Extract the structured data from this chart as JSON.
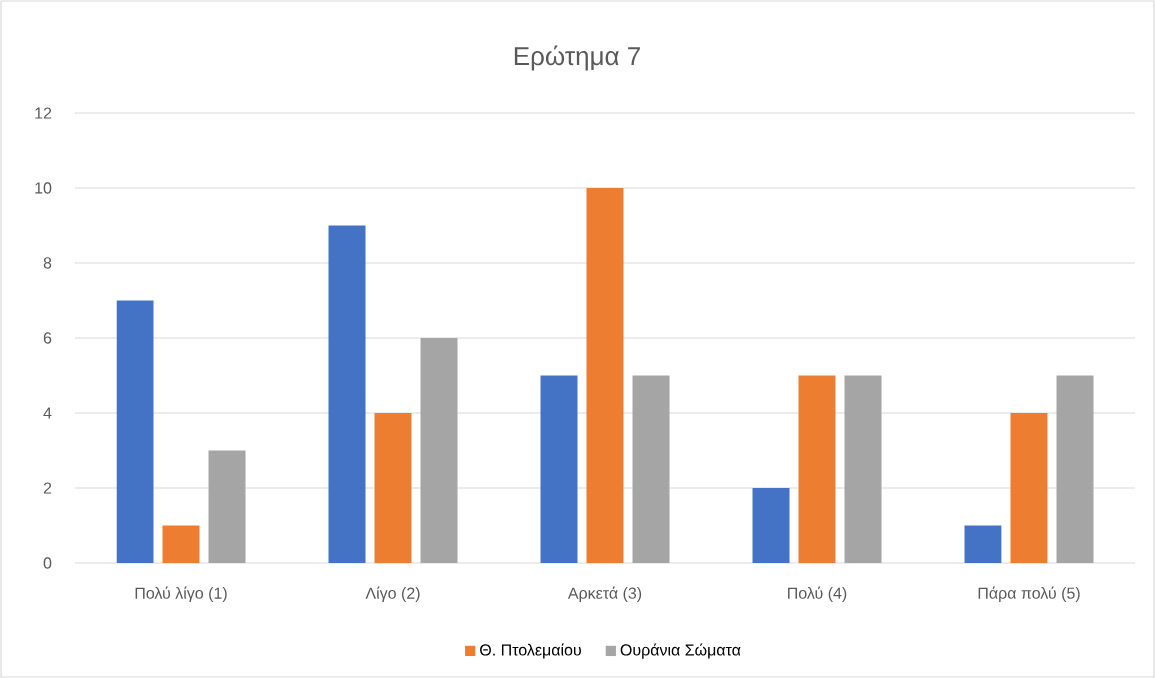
{
  "chart_data": {
    "type": "bar",
    "title": "Ερώτημα 7",
    "categories": [
      "Πολύ λίγο (1)",
      "Λίγο (2)",
      "Αρκετά (3)",
      "Πολύ (4)",
      "Πάρα πολύ (5)"
    ],
    "series": [
      {
        "color": "#4472c4",
        "values": [
          7,
          9,
          5,
          2,
          1
        ]
      },
      {
        "name": "Θ. Πτολεμαίου",
        "color": "#ed7d31",
        "values": [
          1,
          4,
          10,
          5,
          4
        ]
      },
      {
        "name": "Ουράνια Σώματα",
        "color": "#a5a5a5",
        "values": [
          3,
          6,
          5,
          5,
          5
        ]
      }
    ],
    "ylim": [
      0,
      12
    ],
    "yticks": [
      0,
      2,
      4,
      6,
      8,
      10,
      12
    ],
    "grid": "y",
    "legend": "bottom"
  }
}
